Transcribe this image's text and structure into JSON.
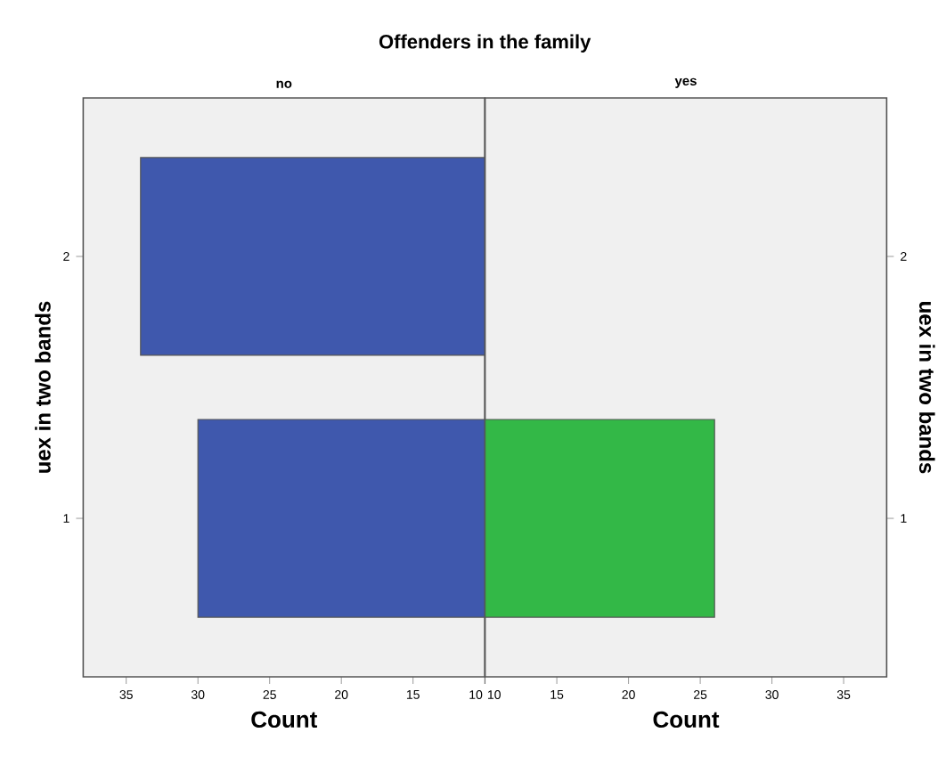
{
  "chart_data": [
    {
      "type": "bar",
      "orientation": "horizontal",
      "title": "Offenders in the family",
      "subtitle": "no",
      "xlabel": "Count",
      "ylabel": "uex in two bands",
      "categories": [
        "2",
        "1"
      ],
      "values": [
        34,
        30
      ],
      "color": "#3f58ad",
      "xlim": [
        38,
        10
      ],
      "xticks": [
        35,
        30,
        25,
        20,
        15,
        10
      ]
    },
    {
      "type": "bar",
      "orientation": "horizontal",
      "subtitle": "yes",
      "xlabel": "Count",
      "ylabel": "uex in two bands",
      "categories": [
        "2",
        "1"
      ],
      "values": [
        null,
        26
      ],
      "color": "#33b847",
      "xlim": [
        10,
        38
      ],
      "xticks": [
        10,
        15,
        20,
        25,
        30,
        35
      ]
    }
  ]
}
